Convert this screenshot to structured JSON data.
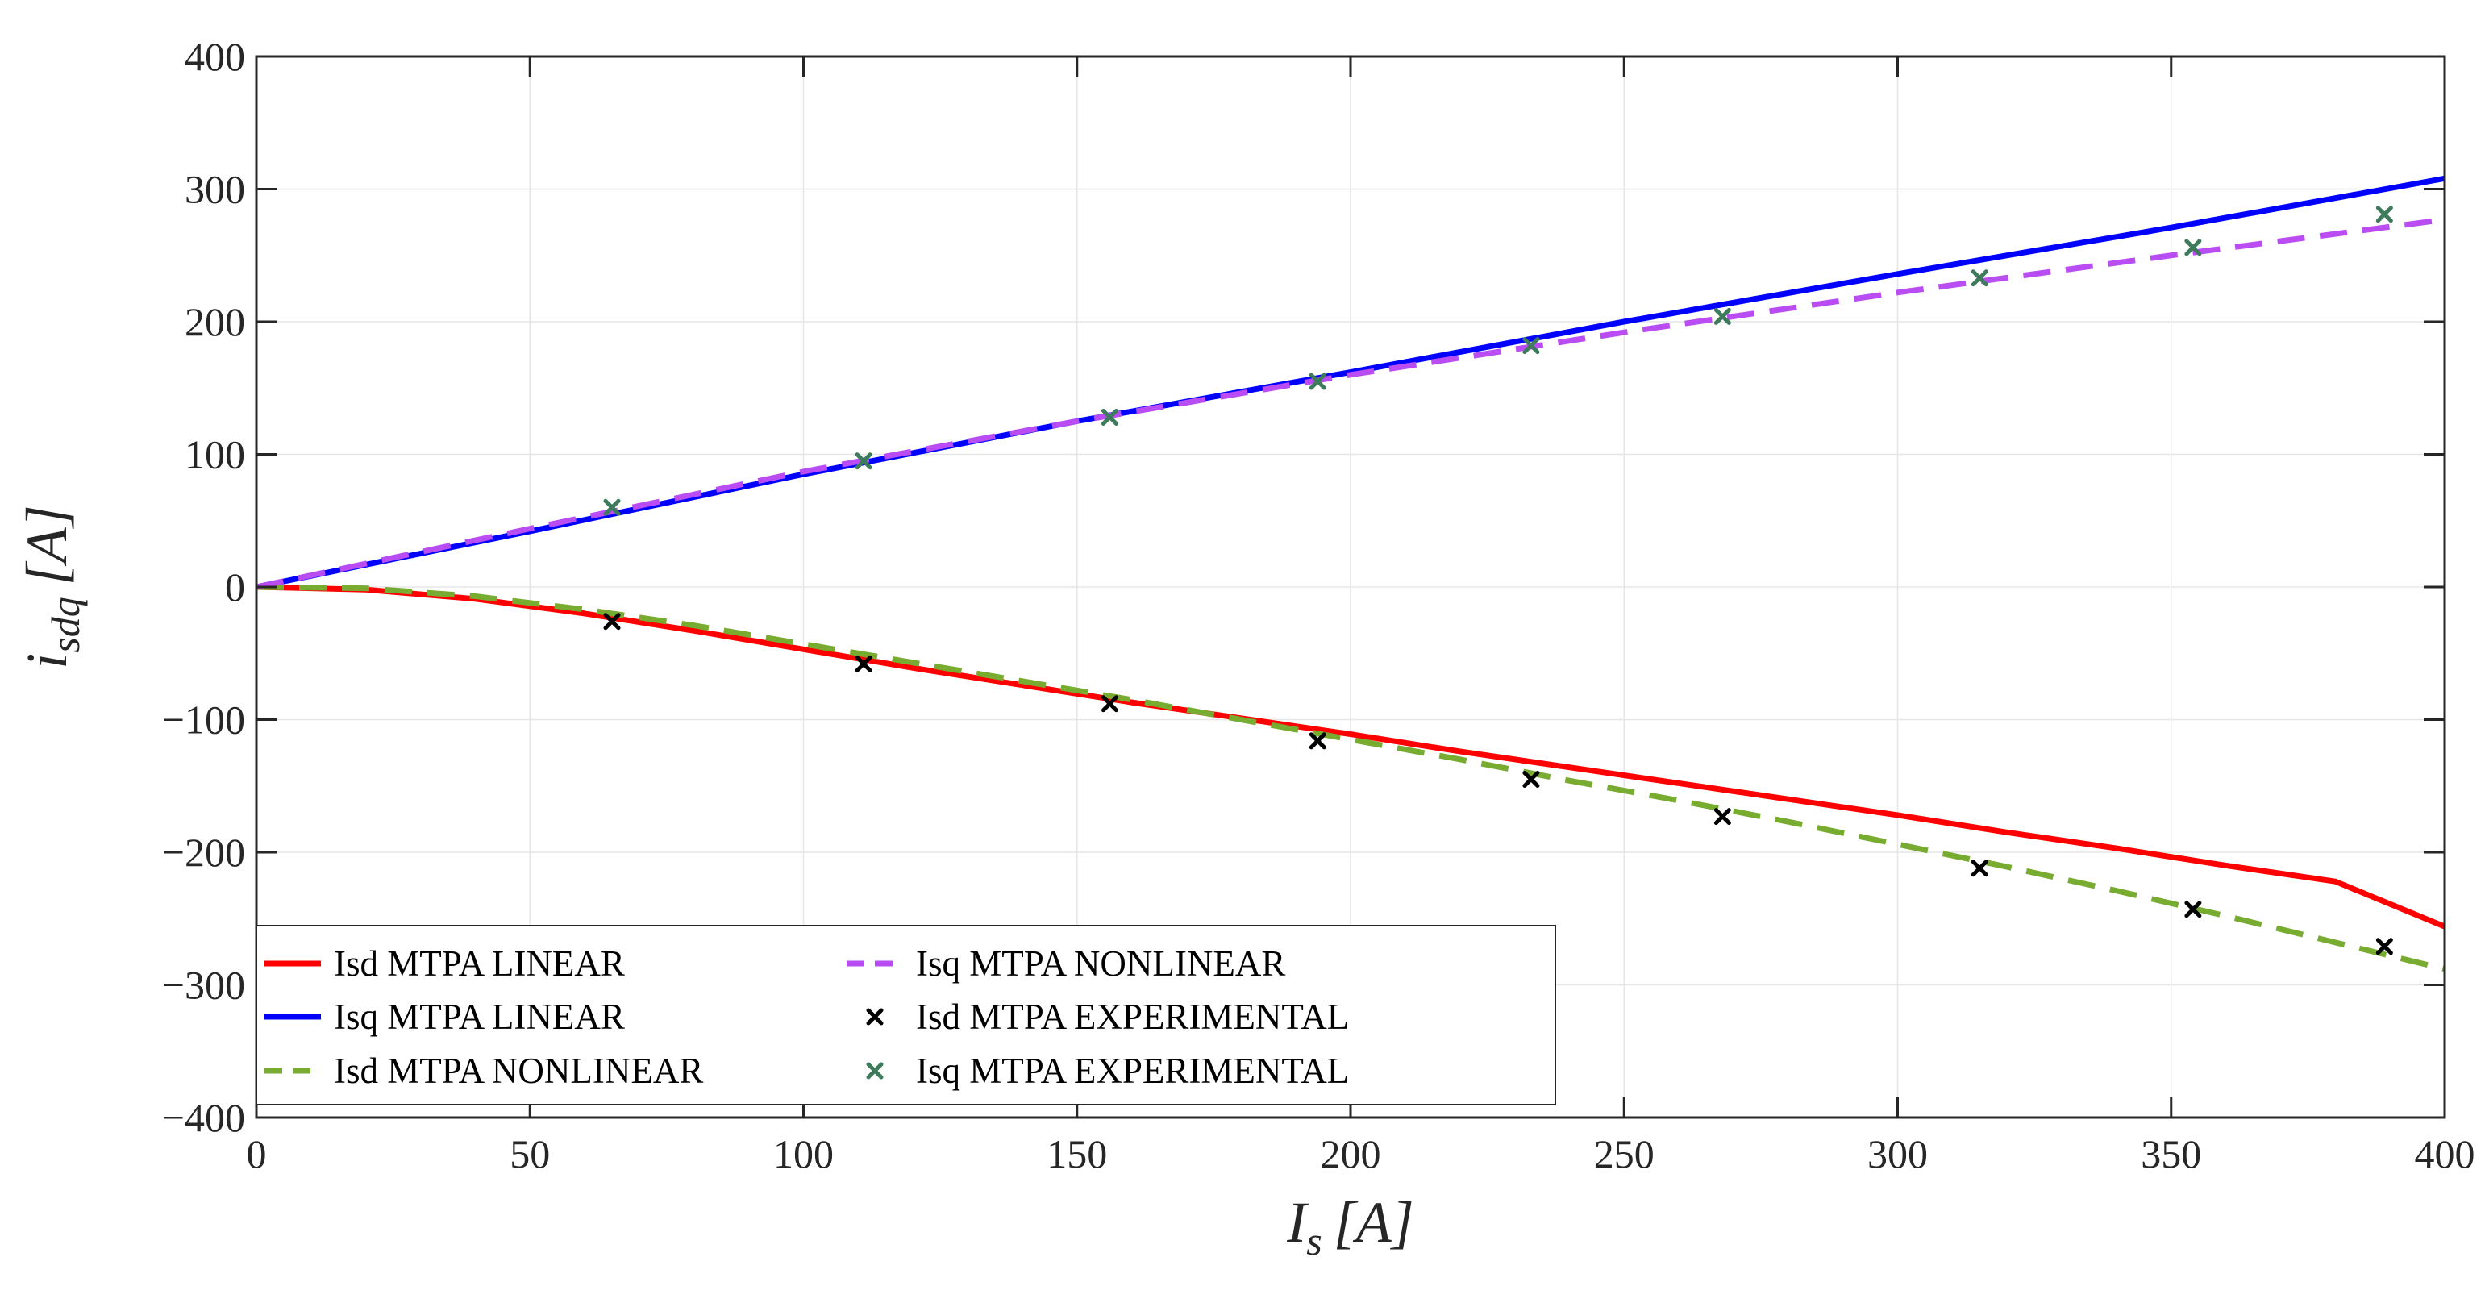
{
  "chart_data": {
    "type": "line",
    "title": "",
    "xlabel": {
      "main": "I",
      "sub": "s",
      "unit": "[A]"
    },
    "ylabel": {
      "main": "i",
      "sub": "sdq",
      "unit": "[A]"
    },
    "xlim": [
      0,
      400
    ],
    "ylim": [
      -400,
      400
    ],
    "xticks": [
      0,
      50,
      100,
      150,
      200,
      250,
      300,
      350,
      400
    ],
    "yticks": [
      -400,
      -300,
      -200,
      -100,
      0,
      100,
      200,
      300,
      400
    ],
    "xtick_labels": [
      "0",
      "50",
      "100",
      "150",
      "200",
      "250",
      "300",
      "350",
      "400"
    ],
    "ytick_labels": [
      "−400",
      "−300",
      "−200",
      "−100",
      "0",
      "100",
      "200",
      "300",
      "400"
    ],
    "grid": true,
    "legend_position": "bottom-left",
    "series": [
      {
        "name": "Isd MTPA LINEAR",
        "kind": "line",
        "style": "solid",
        "color": "#ff0000",
        "x": [
          0,
          20,
          40,
          60,
          80,
          100,
          120,
          140,
          160,
          180,
          200,
          220,
          240,
          260,
          280,
          300,
          320,
          340,
          360,
          380,
          400
        ],
        "y": [
          0,
          -2,
          -9,
          -20,
          -33,
          -47,
          -61,
          -74,
          -87,
          -99,
          -111,
          -124,
          -136,
          -148,
          -160,
          -172,
          -185,
          -197,
          -210,
          -222,
          -256
        ]
      },
      {
        "name": "Isq MTPA LINEAR",
        "kind": "line",
        "style": "solid",
        "color": "#0000ff",
        "x": [
          0,
          50,
          100,
          150,
          200,
          250,
          300,
          350,
          400
        ],
        "y": [
          0,
          42,
          85,
          125,
          162,
          200,
          236,
          271,
          308
        ]
      },
      {
        "name": "Isd MTPA NONLINEAR",
        "kind": "line",
        "style": "dashed",
        "color": "#77ac30",
        "x": [
          0,
          20,
          40,
          60,
          80,
          100,
          120,
          140,
          160,
          180,
          200,
          220,
          240,
          260,
          280,
          300,
          320,
          340,
          360,
          380,
          400
        ],
        "y": [
          0,
          -1,
          -7,
          -17,
          -29,
          -43,
          -57,
          -71,
          -85,
          -100,
          -115,
          -130,
          -146,
          -161,
          -177,
          -194,
          -211,
          -229,
          -248,
          -268,
          -288
        ]
      },
      {
        "name": "Isq MTPA NONLINEAR",
        "kind": "line",
        "style": "dashed",
        "color": "#b94cf2",
        "x": [
          0,
          50,
          100,
          150,
          200,
          250,
          300,
          350,
          400
        ],
        "y": [
          0,
          44,
          87,
          125,
          160,
          192,
          222,
          250,
          277
        ]
      },
      {
        "name": "Isd MTPA EXPERIMENTAL",
        "kind": "marker",
        "marker": "x",
        "color": "#000000",
        "x": [
          65,
          111,
          156,
          194,
          233,
          268,
          315,
          354,
          389
        ],
        "y": [
          -26,
          -58,
          -88,
          -116,
          -145,
          -173,
          -212,
          -243,
          -271
        ]
      },
      {
        "name": "Isq MTPA EXPERIMENTAL",
        "kind": "marker",
        "marker": "x",
        "color": "#3e7b5c",
        "x": [
          65,
          111,
          156,
          194,
          233,
          268,
          315,
          354,
          389
        ],
        "y": [
          60,
          95,
          128,
          155,
          182,
          204,
          233,
          256,
          281
        ]
      }
    ]
  }
}
